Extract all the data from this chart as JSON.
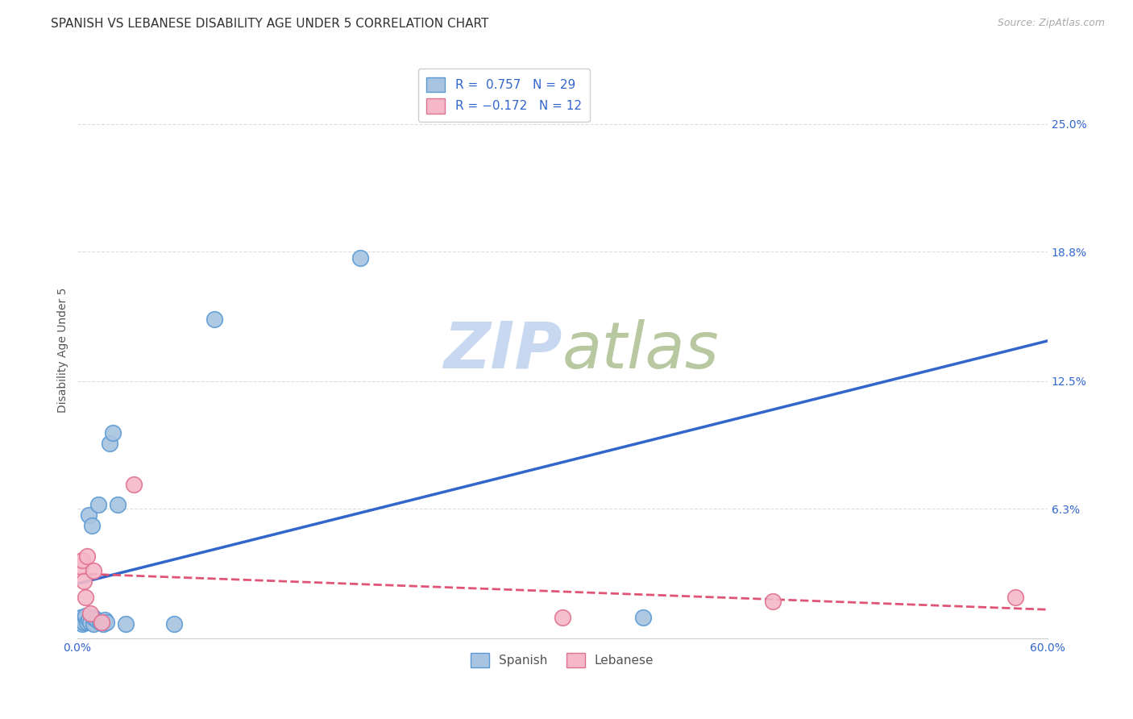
{
  "title": "SPANISH VS LEBANESE DISABILITY AGE UNDER 5 CORRELATION CHART",
  "source": "Source: ZipAtlas.com",
  "ylabel": "Disability Age Under 5",
  "xlabel": "",
  "xlim": [
    0.0,
    0.6
  ],
  "ylim": [
    0.0,
    0.28
  ],
  "xtick_labels": [
    "0.0%",
    "",
    "",
    "",
    "",
    "",
    "60.0%"
  ],
  "xtick_vals": [
    0.0,
    0.1,
    0.2,
    0.3,
    0.4,
    0.5,
    0.6
  ],
  "ytick_labels": [
    "6.3%",
    "12.5%",
    "18.8%",
    "25.0%"
  ],
  "ytick_vals": [
    0.063,
    0.125,
    0.188,
    0.25
  ],
  "bg_color": "#ffffff",
  "plot_bg_color": "#ffffff",
  "grid_color": "#dddddd",
  "spanish_color": "#a8c4e0",
  "spanish_edge_color": "#5b9bd5",
  "lebanese_color": "#f4b8c8",
  "lebanese_edge_color": "#e07090",
  "spanish_line_color": "#3366cc",
  "lebanese_line_color": "#e05575",
  "watermark_color": "#c8d8f0",
  "R_spanish": 0.757,
  "N_spanish": 29,
  "R_lebanese": -0.172,
  "N_lebanese": 12,
  "spanish_x": [
    0.001,
    0.002,
    0.003,
    0.004,
    0.004,
    0.005,
    0.005,
    0.006,
    0.007,
    0.007,
    0.008,
    0.009,
    0.01,
    0.01,
    0.012,
    0.013,
    0.014,
    0.015,
    0.016,
    0.017,
    0.018,
    0.02,
    0.022,
    0.025,
    0.03,
    0.06,
    0.085,
    0.175,
    0.35
  ],
  "spanish_y": [
    0.008,
    0.01,
    0.007,
    0.009,
    0.008,
    0.01,
    0.011,
    0.008,
    0.009,
    0.06,
    0.008,
    0.055,
    0.007,
    0.01,
    0.009,
    0.065,
    0.008,
    0.008,
    0.007,
    0.009,
    0.008,
    0.095,
    0.1,
    0.065,
    0.007,
    0.007,
    0.155,
    0.185,
    0.01
  ],
  "lebanese_x": [
    0.002,
    0.003,
    0.004,
    0.005,
    0.006,
    0.008,
    0.01,
    0.015,
    0.035,
    0.3,
    0.43,
    0.58
  ],
  "lebanese_y": [
    0.035,
    0.038,
    0.028,
    0.02,
    0.04,
    0.012,
    0.033,
    0.008,
    0.075,
    0.01,
    0.018,
    0.02
  ],
  "marker_size": 200,
  "title_fontsize": 11,
  "axis_label_fontsize": 10,
  "tick_fontsize": 10,
  "legend_fontsize": 11,
  "source_fontsize": 9
}
